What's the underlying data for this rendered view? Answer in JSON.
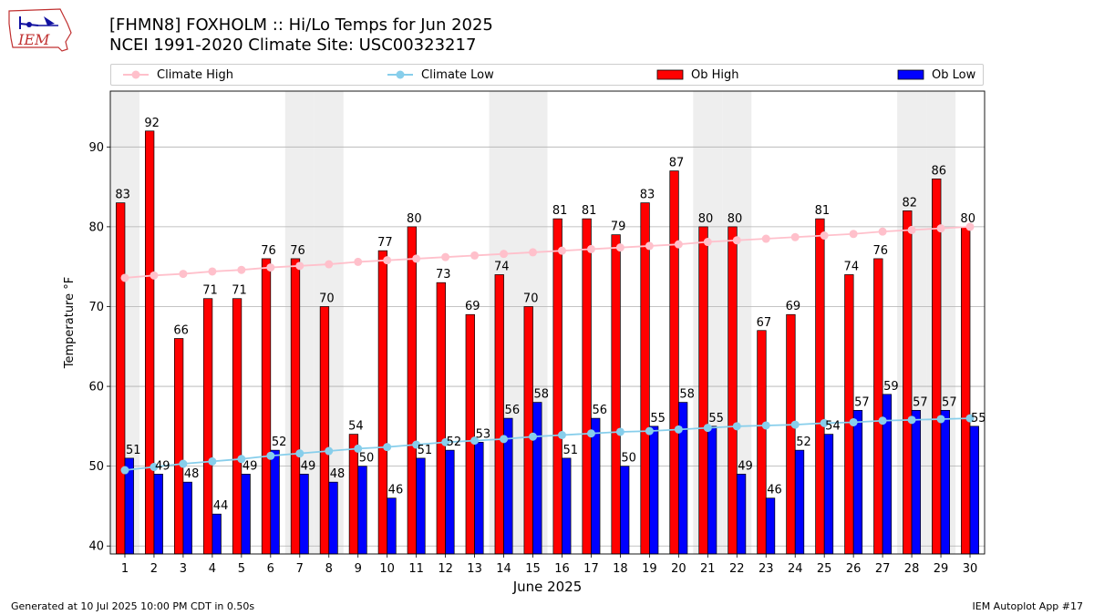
{
  "header": {
    "logo_text": "IEM",
    "title_line1": "[FHMN8] FOXHOLM :: Hi/Lo Temps for Jun 2025",
    "title_line2": "NCEI 1991-2020 Climate Site: USC00323217"
  },
  "legend": {
    "placement": "top, horizontal",
    "items": [
      {
        "label": "Climate High",
        "color": "#ffc0cb",
        "style": "line-marker"
      },
      {
        "label": "Climate Low",
        "color": "#87ceeb",
        "style": "line-marker"
      },
      {
        "label": "Ob High",
        "color": "#ff0000",
        "style": "bar"
      },
      {
        "label": "Ob Low",
        "color": "#0000ff",
        "style": "bar"
      }
    ]
  },
  "footer": {
    "left": "Generated at 10 Jul 2025 10:00 PM CDT in 0.50s",
    "right": "IEM Autoplot App #17"
  },
  "chart_data": {
    "type": "bar",
    "xlabel": "June 2025",
    "ylabel": "Temperature °F",
    "ylim": [
      39,
      97
    ],
    "yticks": [
      40,
      50,
      60,
      70,
      80,
      90
    ],
    "grid": "horizontal",
    "weekend_shading_days": [
      1,
      7,
      8,
      14,
      15,
      21,
      22,
      28,
      29
    ],
    "categories": [
      "1",
      "2",
      "3",
      "4",
      "5",
      "6",
      "7",
      "8",
      "9",
      "10",
      "11",
      "12",
      "13",
      "14",
      "15",
      "16",
      "17",
      "18",
      "19",
      "20",
      "21",
      "22",
      "23",
      "24",
      "25",
      "26",
      "27",
      "28",
      "29",
      "30"
    ],
    "series": [
      {
        "name": "Ob High",
        "kind": "bar",
        "color": "#ff0000",
        "values": [
          83,
          92,
          66,
          71,
          71,
          76,
          76,
          70,
          54,
          77,
          80,
          73,
          69,
          74,
          70,
          81,
          81,
          79,
          83,
          87,
          80,
          80,
          67,
          69,
          81,
          74,
          76,
          82,
          86,
          80
        ]
      },
      {
        "name": "Ob Low",
        "kind": "bar",
        "color": "#0000ff",
        "values": [
          51,
          49,
          48,
          44,
          49,
          52,
          49,
          48,
          50,
          46,
          51,
          52,
          53,
          56,
          58,
          51,
          56,
          50,
          55,
          58,
          55,
          49,
          46,
          52,
          54,
          57,
          59,
          57,
          57,
          55
        ]
      },
      {
        "name": "Climate High",
        "kind": "line",
        "color": "#ffc0cb",
        "values": [
          73.6,
          73.9,
          74.1,
          74.4,
          74.6,
          74.9,
          75.1,
          75.3,
          75.6,
          75.8,
          76.0,
          76.2,
          76.4,
          76.6,
          76.8,
          77.0,
          77.2,
          77.4,
          77.6,
          77.8,
          78.1,
          78.3,
          78.5,
          78.7,
          78.9,
          79.1,
          79.4,
          79.6,
          79.8,
          80.0
        ]
      },
      {
        "name": "Climate Low",
        "kind": "line",
        "color": "#87ceeb",
        "values": [
          49.5,
          49.9,
          50.3,
          50.6,
          50.9,
          51.3,
          51.6,
          51.9,
          52.2,
          52.4,
          52.7,
          53.0,
          53.2,
          53.4,
          53.7,
          53.9,
          54.1,
          54.3,
          54.4,
          54.6,
          54.8,
          55.0,
          55.1,
          55.2,
          55.4,
          55.5,
          55.7,
          55.8,
          55.9,
          56.0
        ]
      }
    ]
  }
}
